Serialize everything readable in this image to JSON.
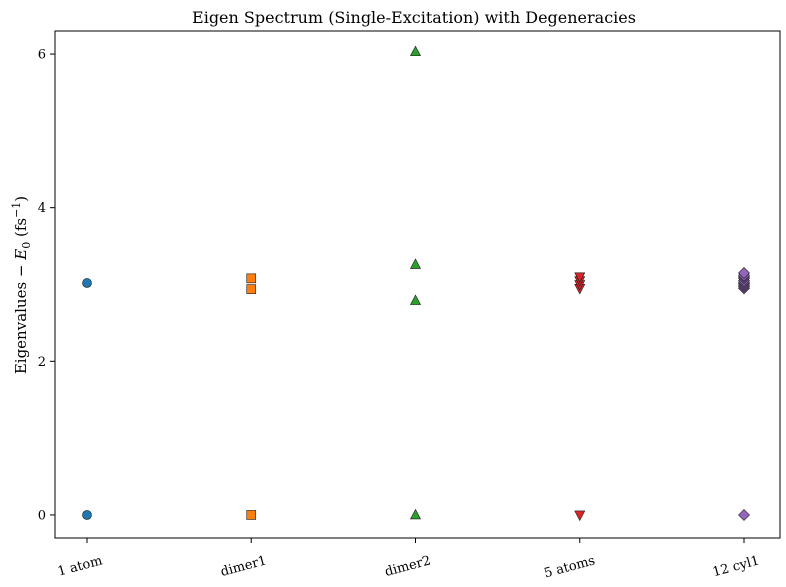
{
  "chart_data": {
    "type": "scatter",
    "title": "Eigen Spectrum (Single-Excitation) with Degeneracies",
    "ylabel_main": "Eigenvalues − ",
    "ylabel_var": "E",
    "ylabel_sub": "0",
    "ylabel_unit_open": " (fs",
    "ylabel_unit_sup": "−1",
    "ylabel_unit_close": ")",
    "xlabel": "",
    "ylim": [
      -0.3,
      6.3
    ],
    "yticks": [
      0,
      2,
      4,
      6
    ],
    "grid": false,
    "categories": [
      "1 atom",
      "dimer1",
      "dimer2",
      "5 atoms",
      "12 cyl1"
    ],
    "series": [
      {
        "category": "1 atom",
        "marker": "circle",
        "color": "#1f77b4",
        "values": [
          0.0,
          3.02
        ]
      },
      {
        "category": "dimer1",
        "marker": "square",
        "color": "#ff7f0e",
        "values": [
          0.0,
          2.94,
          3.08
        ]
      },
      {
        "category": "dimer2",
        "marker": "triangle-up",
        "color": "#2ca02c",
        "values": [
          0.0,
          2.79,
          3.26,
          6.03
        ]
      },
      {
        "category": "5 atoms",
        "marker": "triangle-down",
        "color": "#d62728",
        "values": [
          0.0,
          2.95,
          3.0,
          3.05,
          3.1
        ]
      },
      {
        "category": "12 cyl1",
        "marker": "diamond",
        "color": "#9467bd",
        "values": [
          0.0,
          2.95,
          2.97,
          2.99,
          3.01,
          3.03,
          3.05,
          3.08,
          3.1,
          3.12,
          3.15
        ]
      }
    ]
  }
}
